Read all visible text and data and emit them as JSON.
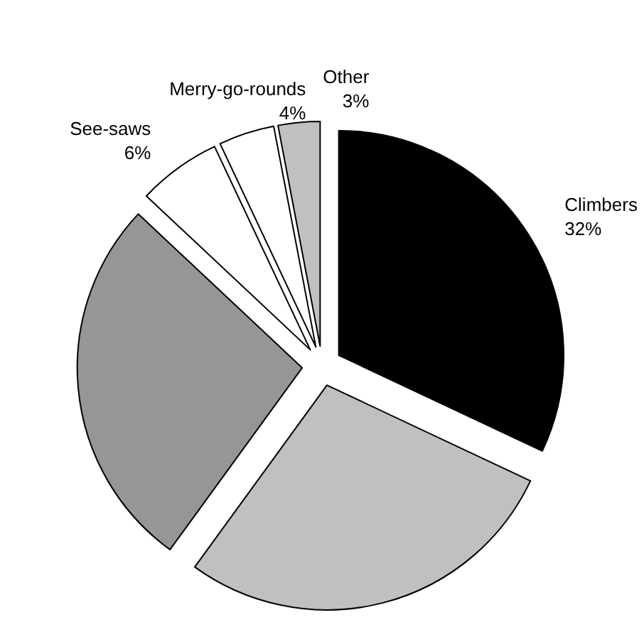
{
  "chart_data": {
    "type": "pie",
    "categories": [
      "Climbers",
      null,
      null,
      "See-saws",
      "Merry-go-rounds",
      "Other"
    ],
    "values": [
      32,
      28,
      27,
      6,
      4,
      3
    ],
    "colors": [
      "#000000",
      "#c0c0c0",
      "#969696",
      "#ffffff",
      "#ffffff",
      "#c0c0c0"
    ],
    "value_labels": [
      "32%",
      null,
      null,
      "6%",
      "4%",
      "3%"
    ],
    "legend": false
  }
}
